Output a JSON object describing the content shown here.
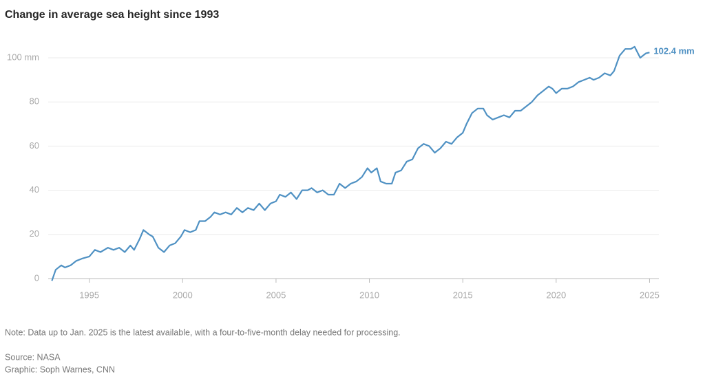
{
  "chart_data": {
    "type": "line",
    "title": "Change in average sea height since 1993",
    "x": [
      1993.0,
      1993.2,
      1993.5,
      1993.7,
      1994.0,
      1994.3,
      1994.6,
      1995.0,
      1995.3,
      1995.6,
      1996.0,
      1996.3,
      1996.6,
      1996.9,
      1997.2,
      1997.4,
      1997.7,
      1997.9,
      1998.2,
      1998.4,
      1998.7,
      1999.0,
      1999.3,
      1999.6,
      1999.9,
      2000.1,
      2000.4,
      2000.7,
      2000.9,
      2001.2,
      2001.5,
      2001.7,
      2002.0,
      2002.3,
      2002.6,
      2002.9,
      2003.2,
      2003.5,
      2003.8,
      2004.1,
      2004.4,
      2004.7,
      2005.0,
      2005.2,
      2005.5,
      2005.8,
      2006.1,
      2006.4,
      2006.7,
      2006.9,
      2007.2,
      2007.5,
      2007.8,
      2008.1,
      2008.4,
      2008.7,
      2009.0,
      2009.3,
      2009.6,
      2009.9,
      2010.1,
      2010.4,
      2010.6,
      2010.9,
      2011.2,
      2011.4,
      2011.7,
      2012.0,
      2012.3,
      2012.6,
      2012.9,
      2013.2,
      2013.5,
      2013.8,
      2014.1,
      2014.4,
      2014.7,
      2015.0,
      2015.2,
      2015.5,
      2015.8,
      2016.1,
      2016.3,
      2016.6,
      2016.9,
      2017.2,
      2017.5,
      2017.8,
      2018.1,
      2018.4,
      2018.7,
      2019.0,
      2019.3,
      2019.6,
      2019.8,
      2020.0,
      2020.3,
      2020.6,
      2020.9,
      2021.2,
      2021.5,
      2021.8,
      2022.0,
      2022.3,
      2022.6,
      2022.9,
      2023.1,
      2023.4,
      2023.7,
      2024.0,
      2024.2,
      2024.5,
      2024.8,
      2025.0
    ],
    "series": [
      {
        "name": "Change in average sea height",
        "color": "#4f91c3",
        "values": [
          -1,
          4,
          6,
          5,
          6,
          8,
          9,
          10,
          13,
          12,
          14,
          13,
          14,
          12,
          15,
          13,
          18,
          22,
          20,
          19,
          14,
          12,
          15,
          16,
          19,
          22,
          21,
          22,
          26,
          26,
          28,
          30,
          29,
          30,
          29,
          32,
          30,
          32,
          31,
          34,
          31,
          34,
          35,
          38,
          37,
          39,
          36,
          40,
          40,
          41,
          39,
          40,
          38,
          38,
          43,
          41,
          43,
          44,
          46,
          50,
          48,
          50,
          44,
          43,
          43,
          48,
          49,
          53,
          54,
          59,
          61,
          60,
          57,
          59,
          62,
          61,
          64,
          66,
          70,
          75,
          77,
          77,
          74,
          72,
          73,
          74,
          73,
          76,
          76,
          78,
          80,
          83,
          85,
          87,
          86,
          84,
          86,
          86,
          87,
          89,
          90,
          91,
          90,
          91,
          93,
          92,
          94,
          101,
          104,
          104,
          105,
          100,
          102,
          102.4
        ]
      }
    ],
    "end_label": "102.4 mm",
    "xlim": [
      1992.8,
      2025.5
    ],
    "ylim": [
      0,
      100
    ],
    "xticks": [
      1995,
      2000,
      2005,
      2010,
      2015,
      2020,
      2025
    ],
    "yticks": [
      0,
      20,
      40,
      60,
      80,
      {
        "value": 100,
        "label": "100 mm"
      }
    ],
    "grid": true,
    "note": "Note: Data up to Jan. 2025 is the latest available, with a four-to-five-month delay needed for processing.",
    "source": "Source: NASA",
    "credit": "Graphic: Soph Warnes, CNN"
  }
}
